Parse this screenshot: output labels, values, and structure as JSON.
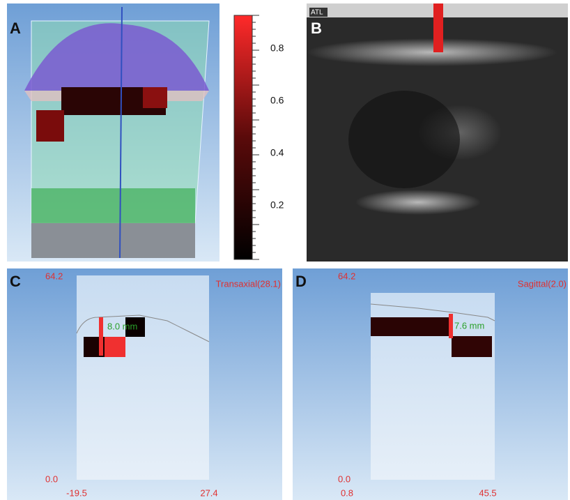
{
  "panels": {
    "a": {
      "label": "A",
      "colorbar_ticks": [
        "0.8",
        "0.6",
        "0.4",
        "0.2"
      ]
    },
    "b": {
      "label": "B",
      "logo": "ATL"
    },
    "c": {
      "label": "C",
      "title": "Transaxial(28.1)",
      "y_top": "64.2",
      "y_bottom": "0.0",
      "x_left": "-19.5",
      "x_right": "27.4",
      "measure": "8.0 mm"
    },
    "d": {
      "label": "D",
      "title": "Sagittal(2.0)",
      "y_top": "64.2",
      "y_bottom": "0.0",
      "x_left": "0.8",
      "x_right": "45.5",
      "measure": "7.6 mm"
    }
  }
}
